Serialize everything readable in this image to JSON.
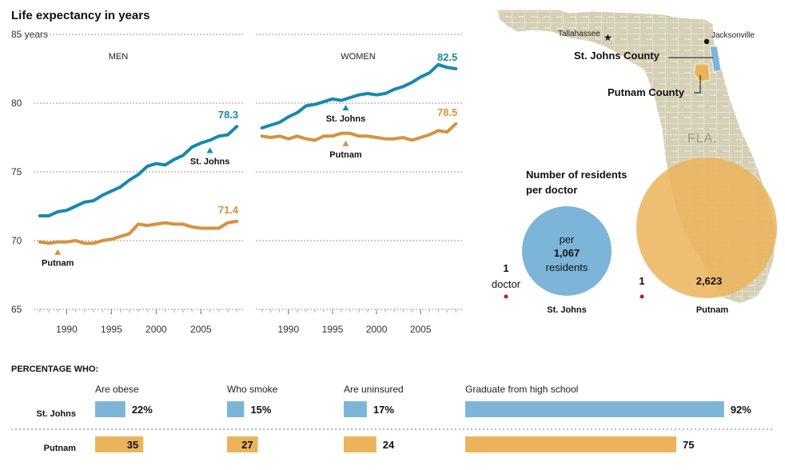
{
  "colors": {
    "stjohns": "#1a88ad",
    "putnam": "#d7923d",
    "stjohns_fill": "#7db5d9",
    "putnam_fill": "#ebb45a",
    "map_land": "#d5d0b5",
    "map_dot": "#b22020",
    "grid": "#999999"
  },
  "life": {
    "title": "Life expectancy in years",
    "yticks": [
      {
        "v": 85,
        "label": "85 years"
      },
      {
        "v": 80,
        "label": "80"
      },
      {
        "v": 75,
        "label": "75"
      },
      {
        "v": 70,
        "label": "70"
      },
      {
        "v": 65,
        "label": "65"
      }
    ],
    "xticks": [
      "1990",
      "1995",
      "2000",
      "2005"
    ]
  },
  "chart_data": [
    {
      "type": "line",
      "title": "MEN",
      "ylim": [
        65,
        85
      ],
      "x": [
        1987,
        1988,
        1989,
        1990,
        1991,
        1992,
        1993,
        1994,
        1995,
        1996,
        1997,
        1998,
        1999,
        2000,
        2001,
        2002,
        2003,
        2004,
        2005,
        2006,
        2007,
        2008,
        2009
      ],
      "series": [
        {
          "name": "St. Johns",
          "end_label": "78.3",
          "values": [
            71.8,
            71.8,
            72.1,
            72.2,
            72.5,
            72.8,
            72.9,
            73.3,
            73.6,
            73.9,
            74.4,
            74.8,
            75.4,
            75.6,
            75.5,
            75.9,
            76.2,
            76.8,
            77.1,
            77.3,
            77.6,
            77.7,
            78.3
          ]
        },
        {
          "name": "Putnam",
          "end_label": "71.4",
          "values": [
            69.9,
            69.8,
            69.9,
            69.9,
            70.0,
            69.8,
            69.8,
            70.0,
            70.1,
            70.3,
            70.5,
            71.2,
            71.1,
            71.2,
            71.3,
            71.2,
            71.2,
            71.0,
            70.9,
            70.9,
            70.9,
            71.3,
            71.4
          ]
        }
      ]
    },
    {
      "type": "line",
      "title": "WOMEN",
      "ylim": [
        65,
        85
      ],
      "x": [
        1987,
        1988,
        1989,
        1990,
        1991,
        1992,
        1993,
        1994,
        1995,
        1996,
        1997,
        1998,
        1999,
        2000,
        2001,
        2002,
        2003,
        2004,
        2005,
        2006,
        2007,
        2008,
        2009
      ],
      "series": [
        {
          "name": "St. Johns",
          "end_label": "82.5",
          "values": [
            78.2,
            78.4,
            78.6,
            79.0,
            79.3,
            79.8,
            79.9,
            80.1,
            80.3,
            80.2,
            80.4,
            80.6,
            80.7,
            80.6,
            80.7,
            81.0,
            81.2,
            81.5,
            81.9,
            82.2,
            82.8,
            82.6,
            82.5
          ]
        },
        {
          "name": "Putnam",
          "end_label": "78.5",
          "values": [
            77.6,
            77.5,
            77.6,
            77.4,
            77.6,
            77.4,
            77.3,
            77.6,
            77.6,
            77.8,
            77.8,
            77.6,
            77.6,
            77.5,
            77.4,
            77.4,
            77.5,
            77.3,
            77.5,
            77.7,
            78.0,
            77.9,
            78.5
          ]
        }
      ]
    },
    {
      "type": "bar",
      "title": "PERCENTAGE WHO:",
      "categories": [
        "Are obese",
        "Who smoke",
        "Are uninsured",
        "Graduate from high school"
      ],
      "ylim": [
        0,
        100
      ],
      "series": [
        {
          "name": "St. Johns",
          "values": [
            22,
            15,
            17,
            92
          ],
          "labels": [
            "22%",
            "15%",
            "17%",
            "92%"
          ]
        },
        {
          "name": "Putnam",
          "values": [
            35,
            27,
            24,
            75
          ],
          "labels": [
            "35",
            "27",
            "24",
            "75"
          ]
        }
      ]
    },
    {
      "type": "bubble",
      "title": "Number of residents per doctor",
      "series": [
        {
          "name": "St. Johns",
          "value": 1067
        },
        {
          "name": "Putnam",
          "value": 2623
        }
      ]
    }
  ],
  "bubbles": {
    "title_line1": "Number of residents",
    "title_line2": "per doctor",
    "stjohns": {
      "count": "1",
      "doctor": "doctor",
      "per": "per",
      "value": "1,067",
      "residents": "residents",
      "name": "St. Johns"
    },
    "putnam": {
      "count": "1",
      "value": "2,623",
      "name": "Putnam"
    }
  },
  "map": {
    "tallahassee": "Tallahassee",
    "jacksonville": "Jacksonville",
    "stjohns_label": "St. Johns County",
    "putnam_label": "Putnam County",
    "state": "FLA."
  },
  "bars_legend": {
    "st_name": "St. Johns",
    "pu_name": "Putnam"
  }
}
